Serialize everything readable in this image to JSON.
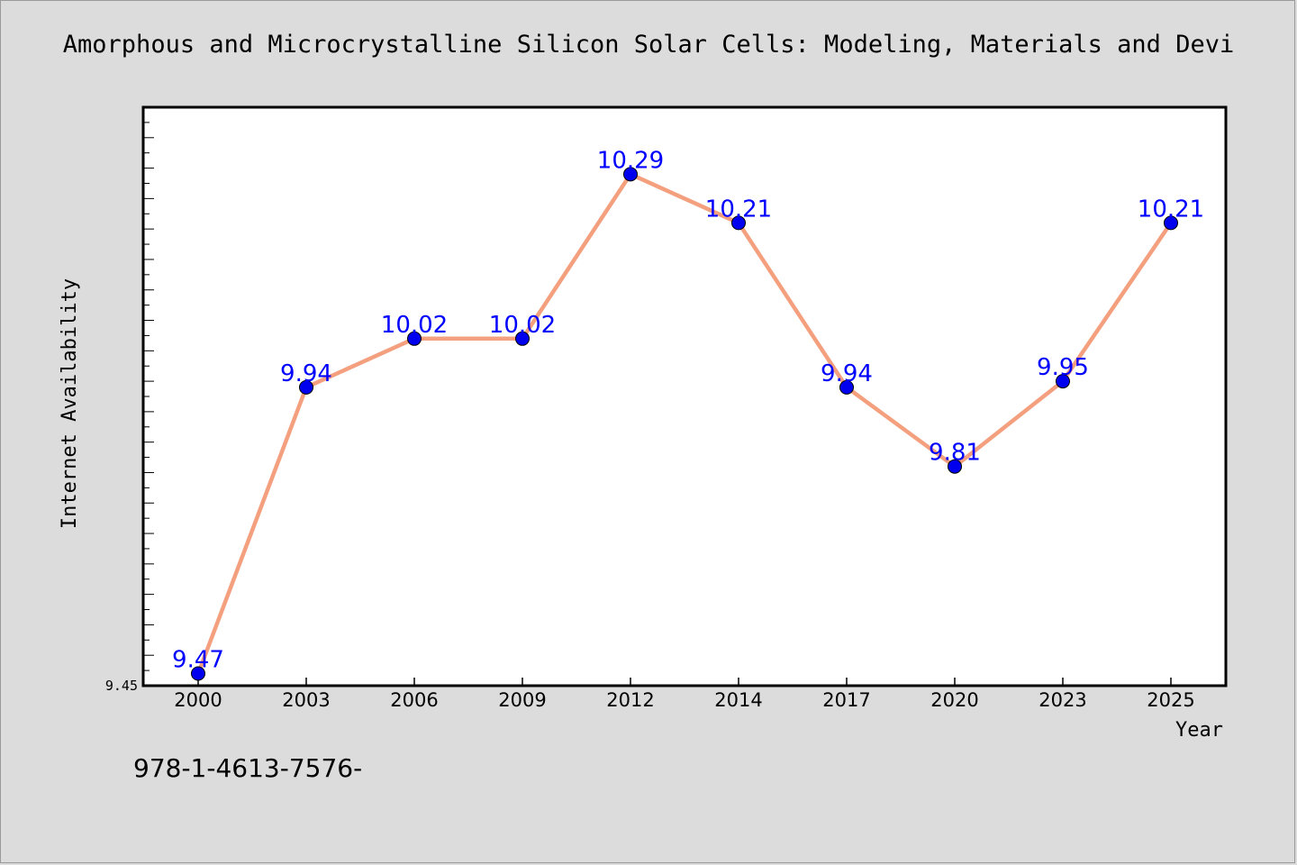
{
  "title": "Amorphous and Microcrystalline Silicon Solar Cells: Modeling, Materials and Devi",
  "footer": "978-1-4613-7576-",
  "colors": {
    "background": "#dcdcdc",
    "plot_background": "#ffffff",
    "line": "#f4a07f",
    "marker": "#0000ee",
    "label": "#0000ff"
  },
  "chart_data": {
    "type": "line",
    "title": "Amorphous and Microcrystalline Silicon Solar Cells: Modeling, Materials and Devi",
    "xlabel": "Year",
    "ylabel": "Internet Availability",
    "categories": [
      "2000",
      "2003",
      "2006",
      "2009",
      "2012",
      "2014",
      "2017",
      "2020",
      "2023",
      "2025"
    ],
    "series": [
      {
        "values": [
          9.47,
          9.94,
          10.02,
          10.02,
          10.29,
          10.21,
          9.94,
          9.81,
          9.95,
          10.21
        ]
      }
    ],
    "data_labels": [
      "9.47",
      "9.94",
      "10.02",
      "10.02",
      "10.29",
      "10.21",
      "9.94",
      "9.81",
      "9.95",
      "10.21"
    ],
    "yticks": [
      "9.45"
    ],
    "ylim": [
      9.45,
      10.4
    ],
    "grid": false,
    "legend": "none"
  }
}
